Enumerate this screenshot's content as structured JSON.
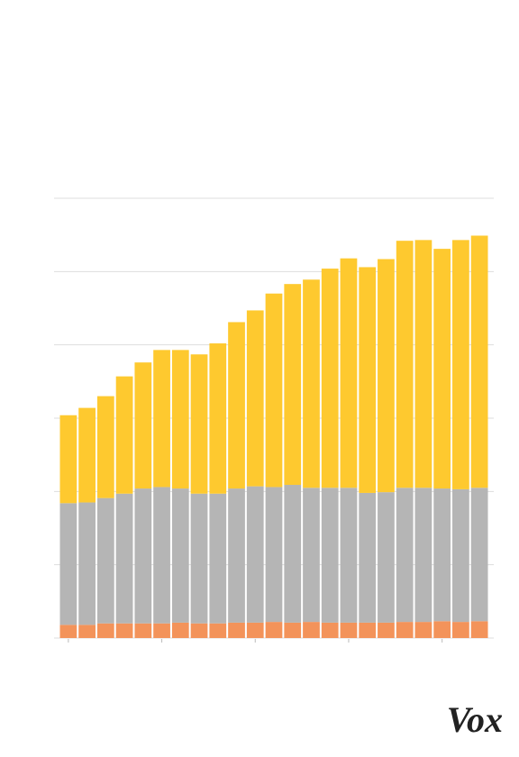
{
  "chart_data": {
    "type": "stacked_bar",
    "categories": [
      null,
      null,
      null,
      null,
      null,
      null,
      null,
      null,
      null,
      null,
      null,
      null,
      null,
      null,
      null,
      null,
      null,
      null,
      null,
      null,
      null,
      null,
      null
    ],
    "series": [
      {
        "color": "#f3935a",
        "values": [
          0.18,
          0.18,
          0.2,
          0.2,
          0.2,
          0.2,
          0.21,
          0.2,
          0.2,
          0.21,
          0.21,
          0.22,
          0.21,
          0.22,
          0.21,
          0.21,
          0.21,
          0.21,
          0.22,
          0.22,
          0.23,
          0.22,
          0.23
        ]
      },
      {
        "color": "#b5b5b5",
        "values": [
          1.66,
          1.67,
          1.71,
          1.77,
          1.84,
          1.86,
          1.83,
          1.77,
          1.77,
          1.83,
          1.86,
          1.84,
          1.88,
          1.83,
          1.84,
          1.84,
          1.77,
          1.78,
          1.83,
          1.83,
          1.81,
          1.81,
          1.82
        ]
      },
      {
        "color": "#fec92f",
        "values": [
          1.2,
          1.29,
          1.39,
          1.6,
          1.72,
          1.87,
          1.89,
          1.9,
          2.05,
          2.27,
          2.4,
          2.64,
          2.74,
          2.84,
          2.99,
          3.13,
          3.08,
          3.18,
          3.37,
          3.38,
          3.27,
          3.4,
          3.44
        ]
      }
    ],
    "ylim": [
      0,
      6
    ],
    "yticks": [
      0,
      1,
      2,
      3,
      4,
      5,
      6
    ],
    "grid": true
  },
  "logo": "Vox"
}
